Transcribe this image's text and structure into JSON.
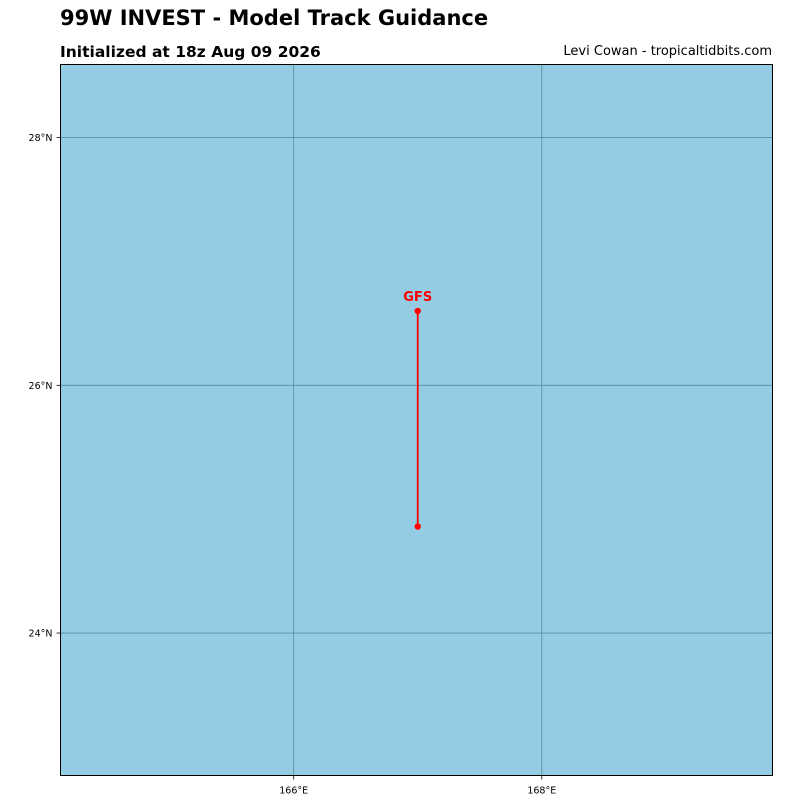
{
  "header": {
    "title": "99W INVEST - Model Track Guidance",
    "subtitle": "Initialized at 18z Aug 09 2026",
    "credit": "Levi Cowan - tropicaltidbits.com"
  },
  "map": {
    "ocean_color": "#94cde3",
    "grid_color": "#5a8a9e",
    "lon_range": [
      164.12,
      169.86
    ],
    "lat_range": [
      22.85,
      28.59
    ],
    "lon_ticks": [
      {
        "value": 166,
        "label": "166°E"
      },
      {
        "value": 168,
        "label": "168°E"
      }
    ],
    "lat_ticks": [
      {
        "value": 28,
        "label": "28°N"
      },
      {
        "value": 26,
        "label": "26°N"
      },
      {
        "value": 24,
        "label": "24°N"
      }
    ]
  },
  "tracks": [
    {
      "model": "GFS",
      "color": "#ff0000",
      "points": [
        {
          "lon": 167.0,
          "lat": 26.6
        },
        {
          "lon": 167.0,
          "lat": 24.86
        }
      ]
    }
  ]
}
